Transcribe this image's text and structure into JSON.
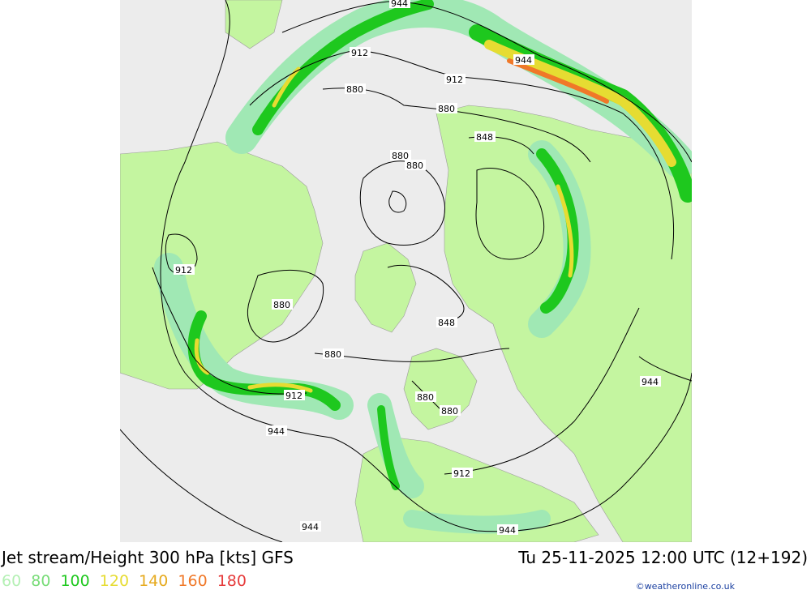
{
  "header": {
    "title": "Jet stream/Height 300 hPa [kts] GFS",
    "valid_time": "Tu 25-11-2025 12:00 UTC (12+192)"
  },
  "legend": {
    "items": [
      {
        "label": "60",
        "color": "#b4f0b4"
      },
      {
        "label": "80",
        "color": "#78dc78"
      },
      {
        "label": "100",
        "color": "#1ec81e"
      },
      {
        "label": "120",
        "color": "#e6dc32"
      },
      {
        "label": "140",
        "color": "#e6aa1e"
      },
      {
        "label": "160",
        "color": "#f07828"
      },
      {
        "label": "180",
        "color": "#e63c3c"
      }
    ]
  },
  "credit": "©weatheronline.co.uk",
  "map": {
    "contour_labels": [
      "944",
      "912",
      "880",
      "944",
      "912",
      "880",
      "848",
      "880",
      "880",
      "912",
      "880",
      "880",
      "848",
      "912",
      "944",
      "880",
      "880",
      "944",
      "912",
      "944",
      "944"
    ],
    "colors": {
      "background": "#ececec",
      "land": "#c4f5a0",
      "jet_light": "#a0e8b4",
      "jet_green": "#1ec81e",
      "jet_yellow": "#e6dc32",
      "jet_orange": "#f07828"
    }
  }
}
